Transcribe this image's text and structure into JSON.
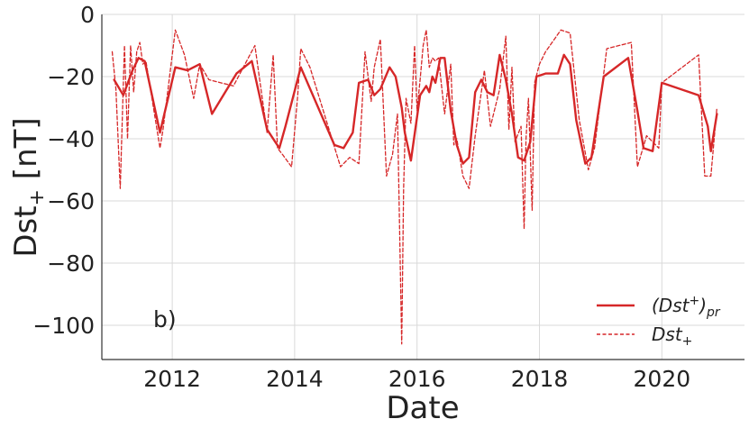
{
  "chart_data": {
    "type": "line",
    "xlabel": "Date",
    "ylabel_main": "Dst",
    "ylabel_sub": "+",
    "ylabel_unit": "[nT]",
    "annotation": "b)",
    "xlim": [
      2010.85,
      2021.35
    ],
    "ylim": [
      -111,
      0
    ],
    "xticks": [
      2012,
      2014,
      2016,
      2018,
      2020
    ],
    "yticks": [
      0,
      -20,
      -40,
      -60,
      -80,
      -100
    ],
    "xtick_labels": [
      "2012",
      "2014",
      "2016",
      "2018",
      "2020"
    ],
    "ytick_labels": [
      "0",
      "−20",
      "−40",
      "−60",
      "−80",
      "−100"
    ],
    "grid": true,
    "legend_position": "lower-right",
    "series": [
      {
        "name": "(Dst+)pr",
        "label_main": "(Dst",
        "label_sup": "+",
        "label_close": ")",
        "label_sub": "pr",
        "style": "solid",
        "color": "#d62728",
        "x": [
          2011.05,
          2011.2,
          2011.35,
          2011.45,
          2011.55,
          2011.8,
          2012.05,
          2012.25,
          2012.45,
          2012.65,
          2013.05,
          2013.3,
          2013.55,
          2013.75,
          2013.85,
          2014.1,
          2014.65,
          2014.8,
          2014.95,
          2015.05,
          2015.2,
          2015.3,
          2015.4,
          2015.55,
          2015.65,
          2015.75,
          2015.8,
          2015.9,
          2016.05,
          2016.15,
          2016.2,
          2016.25,
          2016.3,
          2016.38,
          2016.45,
          2016.55,
          2016.65,
          2016.75,
          2016.85,
          2016.95,
          2017.05,
          2017.15,
          2017.25,
          2017.35,
          2017.45,
          2017.55,
          2017.65,
          2017.75,
          2017.85,
          2017.95,
          2018.1,
          2018.3,
          2018.4,
          2018.5,
          2018.6,
          2018.75,
          2018.85,
          2019.05,
          2019.45,
          2019.6,
          2019.7,
          2019.85,
          2020.0,
          2020.6,
          2020.75,
          2020.8,
          2020.9
        ],
        "y": [
          -21,
          -26,
          -18,
          -14,
          -15,
          -38,
          -17,
          -18,
          -16,
          -32,
          -19,
          -15,
          -37,
          -43,
          -36,
          -17,
          -42,
          -43,
          -38,
          -22,
          -21,
          -26,
          -24,
          -17,
          -20,
          -30,
          -38,
          -47,
          -26,
          -23,
          -25,
          -20,
          -22,
          -14,
          -14,
          -31,
          -42,
          -48,
          -46,
          -25,
          -21,
          -25,
          -26,
          -13,
          -21,
          -32,
          -46,
          -47,
          -41,
          -20,
          -19,
          -19,
          -13,
          -16,
          -34,
          -48,
          -46,
          -20,
          -14,
          -31,
          -43,
          -44,
          -22,
          -26,
          -36,
          -44,
          -32
        ]
      },
      {
        "name": "Dst+",
        "label_main": "Dst",
        "label_sup": "+",
        "style": "dashed",
        "color": "#d62728",
        "x": [
          2011.02,
          2011.08,
          2011.15,
          2011.22,
          2011.27,
          2011.32,
          2011.37,
          2011.42,
          2011.47,
          2011.52,
          2011.57,
          2011.8,
          2011.85,
          2012.05,
          2012.2,
          2012.35,
          2012.45,
          2012.6,
          2013.0,
          2013.35,
          2013.55,
          2013.65,
          2013.72,
          2013.8,
          2013.95,
          2014.05,
          2014.1,
          2014.25,
          2014.75,
          2014.9,
          2015.05,
          2015.15,
          2015.25,
          2015.3,
          2015.4,
          2015.5,
          2015.6,
          2015.68,
          2015.75,
          2015.78,
          2015.82,
          2015.9,
          2015.96,
          2016.0,
          2016.05,
          2016.1,
          2016.15,
          2016.2,
          2016.25,
          2016.3,
          2016.35,
          2016.45,
          2016.55,
          2016.6,
          2016.65,
          2016.75,
          2016.85,
          2016.95,
          2017.1,
          2017.2,
          2017.35,
          2017.45,
          2017.5,
          2017.55,
          2017.6,
          2017.7,
          2017.75,
          2017.78,
          2017.82,
          2017.88,
          2017.92,
          2018.0,
          2018.1,
          2018.35,
          2018.5,
          2018.65,
          2018.8,
          2018.9,
          2019.1,
          2019.5,
          2019.6,
          2019.75,
          2019.95,
          2020.0,
          2020.6,
          2020.7,
          2020.8,
          2020.9
        ],
        "y": [
          -12,
          -24,
          -56,
          -10,
          -40,
          -10,
          -25,
          -12,
          -9,
          -16,
          -15,
          -43,
          -37,
          -5,
          -13,
          -27,
          -16,
          -21,
          -23,
          -10,
          -38,
          -13,
          -43,
          -45,
          -49,
          -26,
          -11,
          -17,
          -49,
          -46,
          -48,
          -12,
          -28,
          -17,
          -8,
          -52,
          -45,
          -32,
          -106,
          -56,
          -27,
          -35,
          -10,
          -31,
          -21,
          -10,
          -5,
          -17,
          -14,
          -15,
          -14,
          -32,
          -16,
          -42,
          -40,
          -52,
          -56,
          -39,
          -18,
          -36,
          -24,
          -7,
          -37,
          -17,
          -41,
          -36,
          -69,
          -40,
          -27,
          -63,
          -22,
          -16,
          -12,
          -5,
          -6,
          -34,
          -50,
          -43,
          -11,
          -9,
          -49,
          -39,
          -43,
          -22,
          -13,
          -52,
          -52,
          -30
        ]
      }
    ]
  }
}
